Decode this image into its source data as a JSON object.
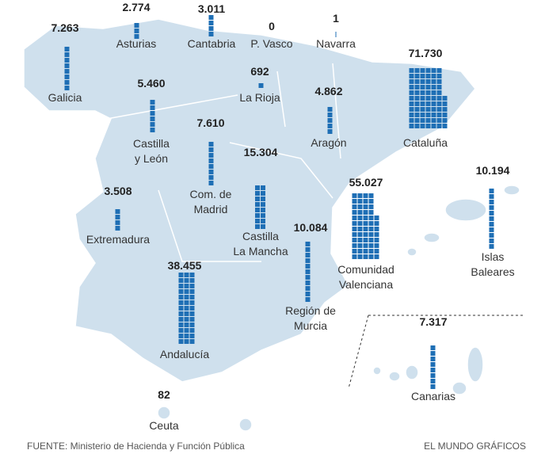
{
  "regions": [
    {
      "name": [
        "Galicia"
      ],
      "value": 7263,
      "value_label": "7.263"
    },
    {
      "name": [
        "Asturias"
      ],
      "value": 2774,
      "value_label": "2.774"
    },
    {
      "name": [
        "Cantabria"
      ],
      "value": 3011,
      "value_label": "3.011"
    },
    {
      "name": [
        "P. Vasco"
      ],
      "value": 0
    },
    {
      "name": [
        "Navarra"
      ],
      "value": 1
    },
    {
      "name": [
        "La Rioja"
      ],
      "value": 692
    },
    {
      "name": [
        "Castilla",
        "y León"
      ],
      "value": 5460,
      "value_label": "5.460"
    },
    {
      "name": [
        "Aragón"
      ],
      "value": 4862,
      "value_label": "4.862"
    },
    {
      "name": [
        "Cataluña"
      ],
      "value": 71730,
      "value_label": "71.730"
    },
    {
      "name": [
        "Com. de",
        "Madrid"
      ],
      "value": 7610,
      "value_label": "7.610"
    },
    {
      "name": [
        "Castilla",
        "La Mancha"
      ],
      "value": 15304,
      "value_label": "15.304"
    },
    {
      "name": [
        "Extremadura"
      ],
      "value": 3508,
      "value_label": "3.508"
    },
    {
      "name": [
        "Comunidad",
        "Valenciana"
      ],
      "value": 55027,
      "value_label": "55.027"
    },
    {
      "name": [
        "Región de",
        "Murcia"
      ],
      "value": 10084,
      "value_label": "10.084"
    },
    {
      "name": [
        "Islas",
        "Baleares"
      ],
      "value": 10194,
      "value_label": "10.194"
    },
    {
      "name": [
        "Andalucía"
      ],
      "value": 38455,
      "value_label": "38.455"
    },
    {
      "name": [
        "Canarias"
      ],
      "value": 7317,
      "value_label": "7.317"
    },
    {
      "name": [
        "Ceuta"
      ],
      "value": 82
    }
  ],
  "source": "FUENTE: Ministerio de Hacienda y Función Pública",
  "credit": "EL MUNDO GRÁFICOS"
}
